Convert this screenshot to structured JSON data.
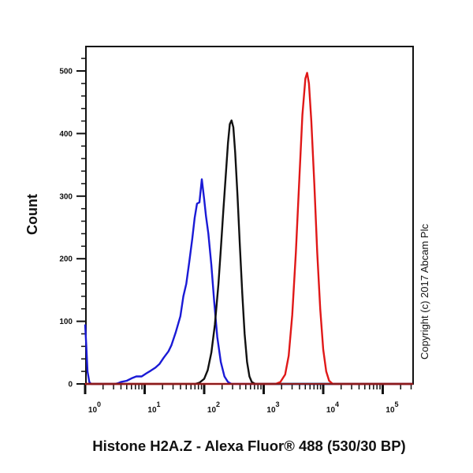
{
  "chart_data": {
    "type": "line",
    "title": "",
    "xlabel": "Histone H2A.Z - Alexa Fluor® 488 (530/30 BP)",
    "ylabel": "Count",
    "xscale": "log",
    "xlim": [
      1,
      316228
    ],
    "ylim": [
      0,
      540
    ],
    "x_ticks": [
      1,
      10,
      100,
      1000,
      10000,
      100000
    ],
    "x_tick_labels": [
      {
        "base": "10",
        "exp": "0"
      },
      {
        "base": "10",
        "exp": "1"
      },
      {
        "base": "10",
        "exp": "2"
      },
      {
        "base": "10",
        "exp": "3"
      },
      {
        "base": "10",
        "exp": "4"
      },
      {
        "base": "10",
        "exp": "5"
      }
    ],
    "y_ticks": [
      0,
      100,
      200,
      300,
      400,
      500
    ],
    "y_tick_labels": [
      "0",
      "100",
      "200",
      "300",
      "400",
      "500"
    ],
    "grid": false,
    "legend": null,
    "annotation": "Copyright (c) 2017 Abcam Plc",
    "series": [
      {
        "name": "blue",
        "color": "#1a1ad6",
        "points": [
          [
            0.0,
            95
          ],
          [
            0.02,
            60
          ],
          [
            0.04,
            20
          ],
          [
            0.07,
            3
          ],
          [
            0.1,
            0
          ],
          [
            0.5,
            0
          ],
          [
            0.55,
            1
          ],
          [
            0.6,
            3
          ],
          [
            0.7,
            5
          ],
          [
            0.78,
            9
          ],
          [
            0.86,
            12
          ],
          [
            0.95,
            12
          ],
          [
            1.03,
            17
          ],
          [
            1.1,
            21
          ],
          [
            1.18,
            26
          ],
          [
            1.25,
            32
          ],
          [
            1.32,
            42
          ],
          [
            1.4,
            52
          ],
          [
            1.45,
            62
          ],
          [
            1.52,
            82
          ],
          [
            1.56,
            95
          ],
          [
            1.6,
            108
          ],
          [
            1.65,
            140
          ],
          [
            1.7,
            160
          ],
          [
            1.75,
            195
          ],
          [
            1.8,
            232
          ],
          [
            1.84,
            265
          ],
          [
            1.88,
            288
          ],
          [
            1.92,
            290
          ],
          [
            1.96,
            327
          ],
          [
            2.0,
            295
          ],
          [
            2.03,
            268
          ],
          [
            2.07,
            240
          ],
          [
            2.12,
            190
          ],
          [
            2.17,
            130
          ],
          [
            2.22,
            75
          ],
          [
            2.28,
            35
          ],
          [
            2.34,
            12
          ],
          [
            2.4,
            3
          ],
          [
            2.46,
            0
          ],
          [
            5.5,
            0
          ]
        ]
      },
      {
        "name": "black",
        "color": "#111111",
        "points": [
          [
            0.0,
            0
          ],
          [
            1.85,
            0
          ],
          [
            1.92,
            2
          ],
          [
            2.0,
            8
          ],
          [
            2.06,
            22
          ],
          [
            2.12,
            50
          ],
          [
            2.18,
            95
          ],
          [
            2.24,
            160
          ],
          [
            2.28,
            215
          ],
          [
            2.32,
            275
          ],
          [
            2.36,
            330
          ],
          [
            2.4,
            385
          ],
          [
            2.43,
            415
          ],
          [
            2.46,
            421
          ],
          [
            2.49,
            410
          ],
          [
            2.52,
            370
          ],
          [
            2.56,
            300
          ],
          [
            2.6,
            220
          ],
          [
            2.64,
            145
          ],
          [
            2.68,
            80
          ],
          [
            2.72,
            35
          ],
          [
            2.76,
            12
          ],
          [
            2.8,
            3
          ],
          [
            2.86,
            0
          ],
          [
            5.5,
            0
          ]
        ]
      },
      {
        "name": "red",
        "color": "#e01818",
        "points": [
          [
            0.0,
            0
          ],
          [
            3.2,
            0
          ],
          [
            3.28,
            3
          ],
          [
            3.36,
            15
          ],
          [
            3.42,
            45
          ],
          [
            3.48,
            110
          ],
          [
            3.54,
            210
          ],
          [
            3.6,
            330
          ],
          [
            3.65,
            430
          ],
          [
            3.7,
            488
          ],
          [
            3.73,
            497
          ],
          [
            3.76,
            480
          ],
          [
            3.8,
            420
          ],
          [
            3.85,
            320
          ],
          [
            3.9,
            210
          ],
          [
            3.95,
            120
          ],
          [
            4.0,
            55
          ],
          [
            4.05,
            20
          ],
          [
            4.1,
            5
          ],
          [
            4.16,
            0
          ],
          [
            5.5,
            0
          ]
        ]
      }
    ],
    "peaks": {
      "blue": {
        "x": 91,
        "y": 327
      },
      "black": {
        "x": 282,
        "y": 421
      },
      "red": {
        "x": 5400,
        "y": 497
      }
    }
  }
}
